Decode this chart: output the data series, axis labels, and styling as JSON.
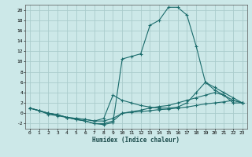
{
  "xlabel": "Humidex (Indice chaleur)",
  "bg_color": "#cce8e8",
  "grid_color": "#aacccc",
  "line_color": "#1a6b6b",
  "xlim": [
    -0.5,
    23.5
  ],
  "ylim": [
    -3,
    21
  ],
  "xticks": [
    0,
    1,
    2,
    3,
    4,
    5,
    6,
    7,
    8,
    9,
    10,
    11,
    12,
    13,
    14,
    15,
    16,
    17,
    18,
    19,
    20,
    21,
    22,
    23
  ],
  "yticks": [
    -2,
    0,
    2,
    4,
    6,
    8,
    10,
    12,
    14,
    16,
    18,
    20
  ],
  "series": [
    {
      "x": [
        0,
        1,
        2,
        3,
        4,
        5,
        6,
        7,
        8,
        9,
        10,
        11,
        12,
        13,
        14,
        15,
        16,
        17,
        18,
        19,
        20,
        21,
        22,
        23
      ],
      "y": [
        1,
        0.5,
        0,
        -0.3,
        -0.8,
        -1.2,
        -1.5,
        -2,
        -2.2,
        -1.8,
        10.5,
        11,
        11.5,
        17,
        18,
        20.5,
        20.5,
        19,
        13,
        6,
        4.5,
        3.5,
        2,
        2
      ]
    },
    {
      "x": [
        0,
        1,
        2,
        3,
        4,
        5,
        6,
        7,
        8,
        9,
        10,
        11,
        12,
        13,
        14,
        15,
        16,
        17,
        18,
        19,
        20,
        21,
        22,
        23
      ],
      "y": [
        1,
        0.5,
        0,
        -0.3,
        -0.8,
        -1.0,
        -1.2,
        -1.5,
        -1.5,
        -1.0,
        0,
        0.2,
        0.3,
        0.5,
        0.7,
        0.8,
        1.0,
        1.2,
        1.5,
        1.8,
        2.0,
        2.2,
        2.5,
        2
      ]
    },
    {
      "x": [
        0,
        1,
        2,
        3,
        4,
        5,
        6,
        7,
        8,
        9,
        10,
        11,
        12,
        13,
        14,
        15,
        16,
        17,
        18,
        19,
        20,
        21,
        22,
        23
      ],
      "y": [
        1,
        0.5,
        -0.2,
        -0.5,
        -0.8,
        -1.2,
        -1.5,
        -2,
        -2,
        -1.5,
        0,
        0.3,
        0.6,
        1.0,
        1.3,
        1.5,
        2,
        2.5,
        3,
        3.5,
        4,
        3.5,
        2.5,
        2
      ]
    },
    {
      "x": [
        0,
        1,
        2,
        3,
        4,
        5,
        6,
        7,
        8,
        9,
        10,
        11,
        12,
        13,
        14,
        15,
        16,
        17,
        18,
        19,
        20,
        21,
        22,
        23
      ],
      "y": [
        1,
        0.5,
        0,
        -0.3,
        -0.8,
        -1.0,
        -1.2,
        -1.5,
        -1.0,
        3.5,
        2.5,
        2,
        1.5,
        1.2,
        1.0,
        1.0,
        1.2,
        2,
        4,
        6,
        5,
        4,
        3,
        2
      ]
    }
  ]
}
